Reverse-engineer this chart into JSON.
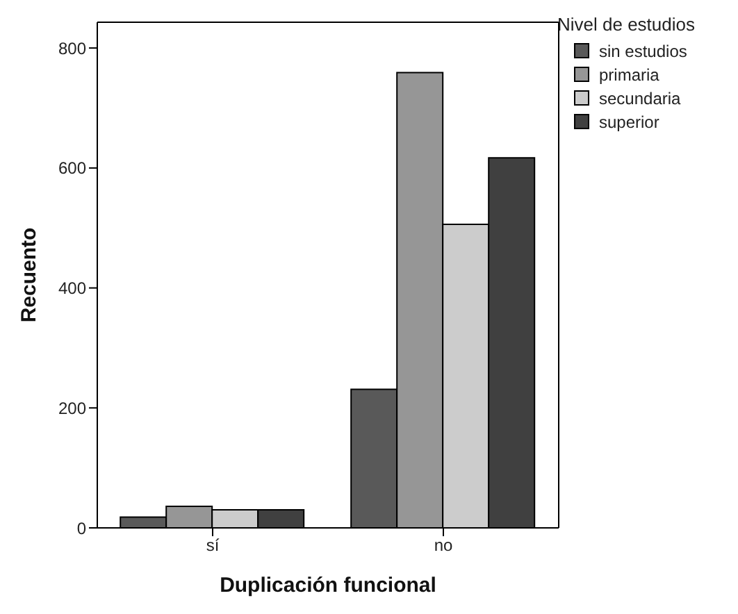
{
  "chart_data": {
    "type": "bar",
    "xlabel": "Duplicación funcional",
    "ylabel": "Recuento",
    "legend_title": "Nivel de estudios",
    "legend": "top right",
    "categories": [
      "sí",
      "no"
    ],
    "series": [
      {
        "name": "sin estudios",
        "color": "#595959",
        "values": [
          18,
          231
        ]
      },
      {
        "name": "primaria",
        "color": "#969696",
        "values": [
          36,
          759
        ]
      },
      {
        "name": "secundaria",
        "color": "#cccccc",
        "values": [
          30,
          506
        ]
      },
      {
        "name": "superior",
        "color": "#404040",
        "values": [
          30,
          617
        ]
      }
    ],
    "ylim": [
      0,
      843
    ],
    "yticks": [
      0,
      200,
      400,
      600,
      800
    ],
    "grid": false
  }
}
